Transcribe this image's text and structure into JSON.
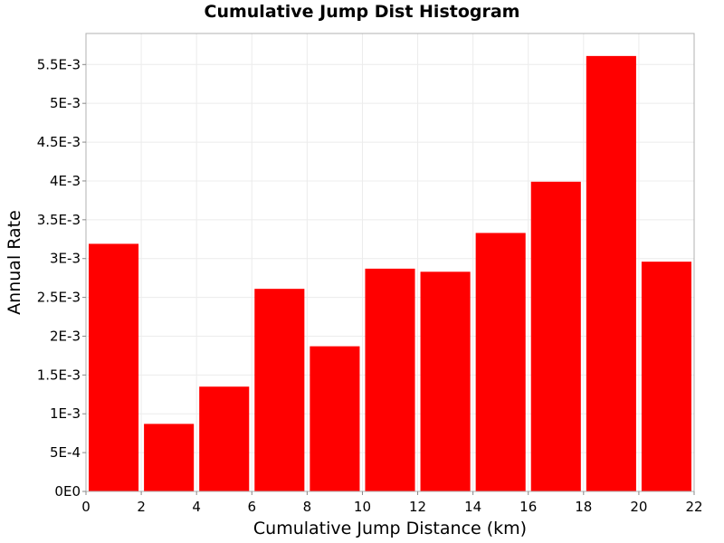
{
  "chart_data": {
    "type": "bar",
    "title": "Cumulative Jump Dist Histogram",
    "xlabel": "Cumulative Jump Distance (km)",
    "ylabel": "Annual Rate",
    "bin_width": 2,
    "x": [
      1,
      3,
      5,
      7,
      9,
      11,
      13,
      15,
      17,
      19,
      21
    ],
    "values": [
      0.00319,
      0.00087,
      0.00135,
      0.00261,
      0.00187,
      0.00287,
      0.00283,
      0.00333,
      0.00399,
      0.00561,
      0.00296
    ],
    "xlim": [
      0,
      22
    ],
    "ylim": [
      0,
      0.0059
    ],
    "x_ticks": [
      "0",
      "2",
      "4",
      "6",
      "8",
      "10",
      "12",
      "14",
      "16",
      "18",
      "20",
      "22"
    ],
    "y_ticks": [
      "0E0",
      "5E-4",
      "1E-3",
      "1.5E-3",
      "2E-3",
      "2.5E-3",
      "3E-3",
      "3.5E-3",
      "4E-3",
      "4.5E-3",
      "5E-3",
      "5.5E-3"
    ],
    "grid": true,
    "bar_color": "#ff0000",
    "legend": "none"
  }
}
